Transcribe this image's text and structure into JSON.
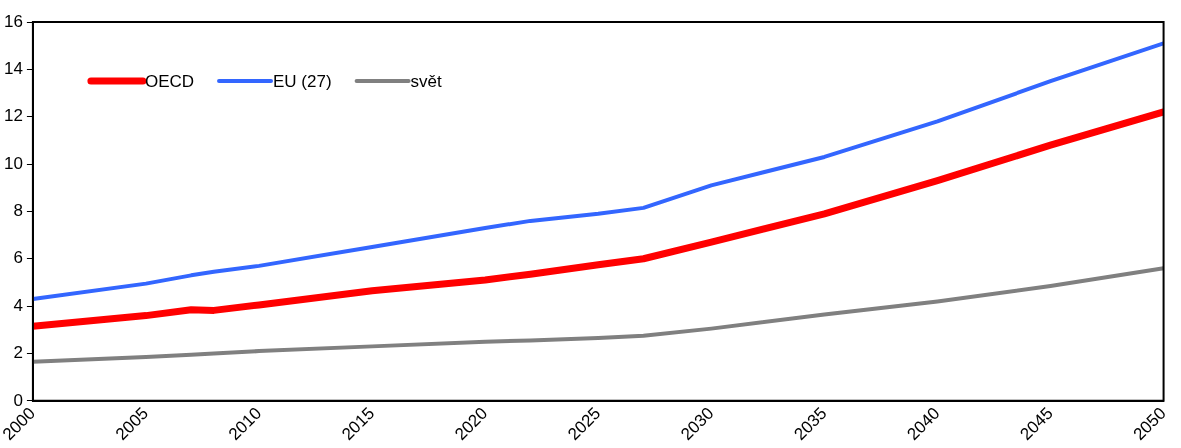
{
  "chart_data": {
    "type": "line",
    "x": [
      2000,
      2005,
      2007,
      2008,
      2010,
      2015,
      2020,
      2022,
      2025,
      2027,
      2030,
      2035,
      2040,
      2045,
      2050
    ],
    "series": [
      {
        "name": "OECD",
        "color": "#ff0000",
        "values": [
          3.15,
          3.6,
          3.85,
          3.82,
          4.05,
          4.65,
          5.1,
          5.35,
          5.75,
          6.0,
          6.7,
          7.9,
          9.3,
          10.8,
          12.2
        ]
      },
      {
        "name": "EU (27)",
        "color": "#3366ff",
        "values": [
          4.3,
          4.95,
          5.3,
          5.45,
          5.7,
          6.5,
          7.3,
          7.6,
          7.9,
          8.15,
          9.1,
          10.3,
          11.8,
          13.5,
          15.1
        ]
      },
      {
        "name": "svět",
        "color": "#808080",
        "values": [
          1.65,
          1.85,
          1.95,
          2.0,
          2.1,
          2.3,
          2.5,
          2.55,
          2.65,
          2.75,
          3.05,
          3.65,
          4.2,
          4.85,
          5.6
        ]
      }
    ],
    "xlim": [
      2000,
      2050
    ],
    "xticks": [
      2000,
      2005,
      2010,
      2015,
      2020,
      2025,
      2030,
      2035,
      2040,
      2045,
      2050
    ],
    "ylim": [
      0,
      16
    ],
    "yticks": [
      0,
      2,
      4,
      6,
      8,
      10,
      12,
      14,
      16
    ],
    "grid": false,
    "legend": "top left",
    "marker": "none",
    "line_style": "solid"
  }
}
